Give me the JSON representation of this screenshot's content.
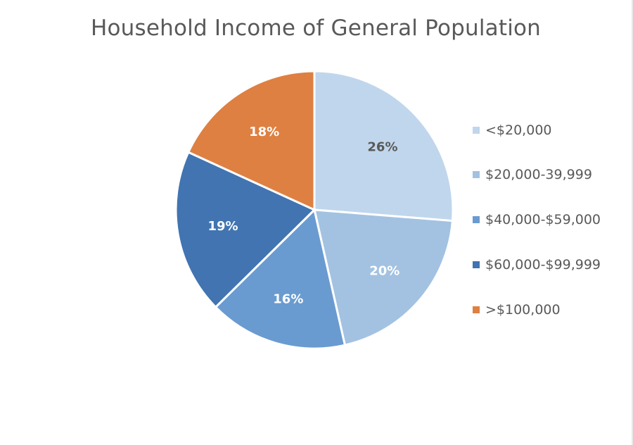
{
  "chart_data": {
    "type": "pie",
    "title": "Household Income of General Population",
    "categories": [
      "<$20,000",
      "$20,000-39,999",
      "$40,000-$59,000",
      "$60,000-$99,999",
      ">$100,000"
    ],
    "values": [
      26,
      20,
      16,
      19,
      18
    ],
    "labels": [
      "26%",
      "20%",
      "16%",
      "19%",
      "18%"
    ],
    "colors": [
      "#c0d6ec",
      "#a3c2e2",
      "#6a9bd0",
      "#4174b1",
      "#de8042"
    ],
    "label_colors": [
      "#595959",
      "#ffffff",
      "#ffffff",
      "#ffffff",
      "#ffffff"
    ],
    "legend_position": "right",
    "start_angle_deg": 0,
    "direction": "clockwise"
  },
  "legend": {
    "items": [
      {
        "label": "<$20,000",
        "color": "#c0d6ec"
      },
      {
        "label": "$20,000-39,999",
        "color": "#a3c2e2"
      },
      {
        "label": "$40,000-$59,000",
        "color": "#6a9bd0"
      },
      {
        "label": "$60,000-$99,999",
        "color": "#4174b1"
      },
      {
        "label": ">$100,000",
        "color": "#de8042"
      }
    ]
  }
}
